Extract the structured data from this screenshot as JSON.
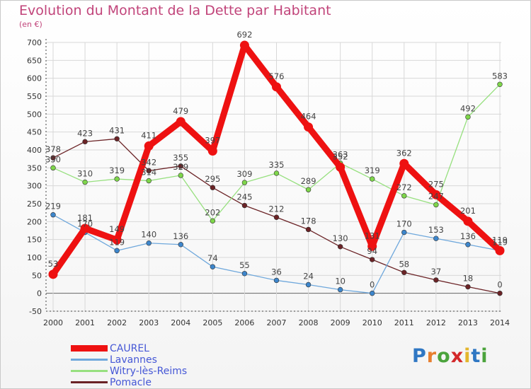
{
  "colors": {
    "title": "#c1447a",
    "axis_text": "#333333",
    "grid": "#d8d8d8",
    "axis_line": "#444444",
    "zero_line": "#666666",
    "legend_text": "#4557d6"
  },
  "logo": {
    "text": "Proxiti",
    "letter_colors": [
      "#2f77c3",
      "#e77f2f",
      "#4ba33c",
      "#d3282a",
      "#e3b52c",
      "#2f77c3",
      "#4ba33c"
    ]
  },
  "chart_data": {
    "type": "line",
    "title": "Evolution du Montant de la Dette par Habitant",
    "subtitle": "(en €)",
    "xlabel": "",
    "ylabel": "",
    "x": [
      "2000",
      "2001",
      "2002",
      "2003",
      "2004",
      "2005",
      "2006",
      "2007",
      "2008",
      "2009",
      "2010",
      "2011",
      "2012",
      "2013",
      "2014"
    ],
    "ylim": [
      -50,
      700
    ],
    "yticks": [
      -50,
      0,
      50,
      100,
      150,
      200,
      250,
      300,
      350,
      400,
      450,
      500,
      550,
      600,
      650,
      700
    ],
    "grid": true,
    "legend_position": "bottom-left",
    "series": [
      {
        "name": "Pomacle",
        "color": "#6b2326",
        "marker_fill": "#6b2326",
        "values": [
          378,
          423,
          431,
          342,
          355,
          295,
          245,
          212,
          178,
          130,
          94,
          58,
          37,
          18,
          0
        ],
        "labels": [
          "378",
          "423",
          "431",
          "342",
          "355",
          "295",
          "245",
          "212",
          "178",
          "130",
          "94",
          "58",
          "37",
          "18",
          "0"
        ]
      },
      {
        "name": "Witry-lès-Reims",
        "color": "#97e07f",
        "marker_fill": "#7ed64a",
        "values": [
          350,
          310,
          319,
          314,
          329,
          202,
          309,
          335,
          289,
          363,
          319,
          272,
          247,
          492,
          583
        ],
        "labels": [
          "350",
          "310",
          "319",
          "314",
          "329",
          "202",
          "309",
          "335",
          "289",
          "363",
          "319",
          "272",
          "247",
          "492",
          "583"
        ]
      },
      {
        "name": "Lavannes",
        "color": "#6fa8dc",
        "marker_fill": "#3d86cc",
        "values": [
          219,
          170,
          119,
          140,
          136,
          74,
          55,
          36,
          24,
          10,
          0,
          170,
          153,
          136,
          119
        ],
        "labels": [
          "219",
          "170",
          "119",
          "140",
          "136",
          "74",
          "55",
          "36",
          "24",
          "10",
          "0",
          "170",
          "153",
          "136",
          "119"
        ]
      },
      {
        "name": "CAUREL",
        "color": "#ee1111",
        "marker_fill": "#ee1111",
        "values": [
          53,
          181,
          149,
          411,
          479,
          397,
          692,
          576,
          464,
          352,
          131,
          362,
          275,
          201,
          119
        ],
        "labels": [
          "53",
          "181",
          "149",
          "411",
          "479",
          "397",
          "692",
          "576",
          "464",
          "352",
          "131",
          "362",
          "275",
          "201",
          "119"
        ]
      }
    ],
    "legend": [
      {
        "name": "CAUREL",
        "color": "#ee1111",
        "thick": true
      },
      {
        "name": "Lavannes",
        "color": "#6fa8dc",
        "thick": false
      },
      {
        "name": "Witry-lès-Reims",
        "color": "#97e07f",
        "thick": false
      },
      {
        "name": "Pomacle",
        "color": "#6b2326",
        "thick": false
      }
    ]
  }
}
